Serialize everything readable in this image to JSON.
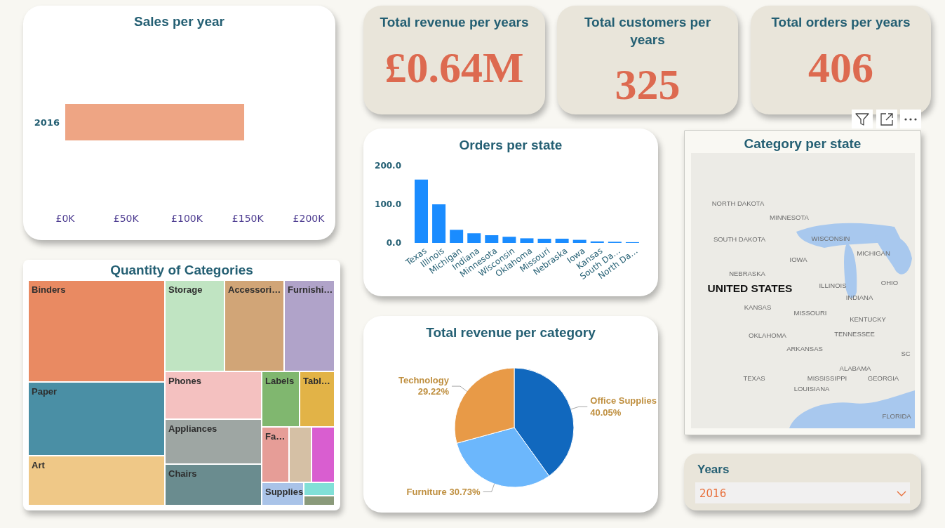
{
  "chart_data": [
    {
      "type": "bar",
      "title": "Sales per year",
      "orientation": "horizontal",
      "categories": [
        "2016"
      ],
      "values": [
        147000
      ],
      "color": "#eea584",
      "xlim": [
        0,
        200000
      ],
      "xticks": [
        {
          "value": 0,
          "label": "£0K"
        },
        {
          "value": 50000,
          "label": "£50K"
        },
        {
          "value": 100000,
          "label": "£100K"
        },
        {
          "value": 150000,
          "label": "£150K"
        },
        {
          "value": 200000,
          "label": "£200K"
        }
      ]
    },
    {
      "type": "other",
      "title": "Total revenue per years",
      "annotations": [
        "£0.64M"
      ]
    },
    {
      "type": "other",
      "title": "Total customers per years",
      "annotations": [
        "325"
      ]
    },
    {
      "type": "other",
      "title": "Total orders per years",
      "annotations": [
        "406"
      ]
    },
    {
      "type": "bar",
      "title": "Orders per state",
      "categories": [
        "Texas",
        "Illinois",
        "Michigan",
        "Indiana",
        "Minnesota",
        "Wisconsin",
        "Oklahoma",
        "Missouri",
        "Nebraska",
        "Iowa",
        "Kansas",
        "South Da…",
        "North Da…"
      ],
      "values": [
        164,
        100,
        34,
        25,
        20,
        16,
        12,
        11,
        11,
        8,
        4,
        3,
        2
      ],
      "color": "#1a8cff",
      "ylim": [
        0,
        200
      ],
      "yticks": [
        {
          "value": 0,
          "label": "0.0"
        },
        {
          "value": 100,
          "label": "100.0"
        },
        {
          "value": 200,
          "label": "200.0"
        }
      ]
    },
    {
      "type": "other",
      "title": "Category per state",
      "annotations": [
        "NORTH DAKOTA",
        "MINNESOTA",
        "SOUTH DAKOTA",
        "WISCONSIN",
        "MICHIGAN",
        "IOWA",
        "NEBRASKA",
        "UNITED STATES",
        "ILLINOIS",
        "INDIANA",
        "OHIO",
        "KANSAS",
        "MISSOURI",
        "KENTUCKY",
        "OKLAHOMA",
        "TENNESSEE",
        "ARKANSAS",
        "SC",
        "ALABAMA",
        "MISSISSIPPI",
        "GEORGIA",
        "TEXAS",
        "LOUISIANA",
        "FLORIDA"
      ]
    },
    {
      "type": "other",
      "title": "Quantity of Categories",
      "categories": [
        "Binders",
        "Paper",
        "Art",
        "Storage",
        "Accessori…",
        "Furnishi…",
        "Phones",
        "Appliances",
        "Chairs",
        "Labels",
        "Tabl…",
        "Fa…",
        null,
        null,
        "Supplies",
        null,
        null
      ],
      "colors": [
        "#e98a62",
        "#4a8fa5",
        "#efc887",
        "#c0e4c2",
        "#d1a577",
        "#b0a3c9",
        "#f4c1c0",
        "#9ea6a3",
        "#6a8c8f",
        "#80b76f",
        "#e2b347",
        "#e69d97",
        "#d5c0a5",
        "#d95ed0",
        "#a9c3e8",
        "#81e0d7",
        "#8a9a7a"
      ]
    },
    {
      "type": "pie",
      "title": "Total revenue per category",
      "categories": [
        "Office Supplies",
        "Furniture",
        "Technology"
      ],
      "values": [
        40.05,
        30.73,
        29.22
      ],
      "colors": [
        "#1168be",
        "#6cb7fc",
        "#e89a47"
      ],
      "value_labels": [
        "40.05%",
        "30.73%",
        "29.22%"
      ]
    },
    {
      "type": "other",
      "title": "Years",
      "annotations": [
        "2016"
      ]
    }
  ]
}
